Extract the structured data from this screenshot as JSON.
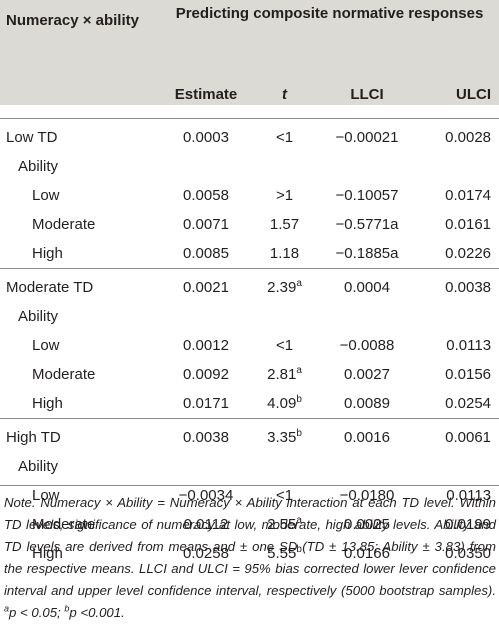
{
  "table": {
    "corner_header": "Numeracy × ability",
    "span_header": "Predicting composite normative responses",
    "columns": [
      "Estimate",
      "t",
      "LLCI",
      "ULCI"
    ],
    "groups": [
      {
        "label": "Low TD",
        "estimate": "0.0003",
        "t": "<1",
        "t_sup": "",
        "llci": "−0.00021",
        "ulci": "0.0028",
        "sub_label": "Ability",
        "rows": [
          {
            "label": "Low",
            "estimate": "0.0058",
            "t": ">1",
            "t_sup": "",
            "llci": "−0.10057",
            "ulci": "0.0174"
          },
          {
            "label": "Moderate",
            "estimate": "0.0071",
            "t": "1.57",
            "t_sup": "",
            "llci": "−0.5771a",
            "ulci": "0.0161"
          },
          {
            "label": "High",
            "estimate": "0.0085",
            "t": "1.18",
            "t_sup": "",
            "llci": "−0.1885a",
            "ulci": "0.0226"
          }
        ]
      },
      {
        "label": "Moderate TD",
        "estimate": "0.0021",
        "t": "2.39",
        "t_sup": "a",
        "llci": "0.0004",
        "ulci": "0.0038",
        "sub_label": "Ability",
        "rows": [
          {
            "label": "Low",
            "estimate": "0.0012",
            "t": "<1",
            "t_sup": "",
            "llci": "−0.0088",
            "ulci": "0.0113"
          },
          {
            "label": "Moderate",
            "estimate": "0.0092",
            "t": "2.81",
            "t_sup": "a",
            "llci": "0.0027",
            "ulci": "0.0156"
          },
          {
            "label": "High",
            "estimate": "0.0171",
            "t": "4.09",
            "t_sup": "b",
            "llci": "0.0089",
            "ulci": "0.0254"
          }
        ]
      },
      {
        "label": "High TD",
        "estimate": "0.0038",
        "t": "3.35",
        "t_sup": "b",
        "llci": "0.0016",
        "ulci": "0.0061",
        "sub_label": "Ability",
        "rows": [
          {
            "label": "Low",
            "estimate": "−0.0034",
            "t": "<1",
            "t_sup": "",
            "llci": "−0.0180",
            "ulci": "0.0113"
          },
          {
            "label": "Moderate",
            "estimate": "0.0112",
            "t": "2.55",
            "t_sup": "a",
            "llci": "0.0025",
            "ulci": "0.0199"
          },
          {
            "label": "High",
            "estimate": "0.0258",
            "t": "5.55",
            "t_sup": "b",
            "llci": "0.0166",
            "ulci": "0.0350"
          }
        ]
      }
    ]
  },
  "note": {
    "main": "Note. Numeracy × Ability = Numeracy × Ability interaction at each TD level. Within TD levels, significance of numeracy at low, moderate, high ability levels. Ability and TD levels are derived from means and ± one SD (TD ± 13.85; Ability ± 3.83) from the respective means. LLCI and ULCI = 95% bias corrected lower lever confidence interval and upper level confidence interval, respectively (5000 bootstrap samples). ",
    "sup_a": "a",
    "a_text": "p < 0.05; ",
    "sup_b": "b",
    "b_text": "p <0.001."
  }
}
